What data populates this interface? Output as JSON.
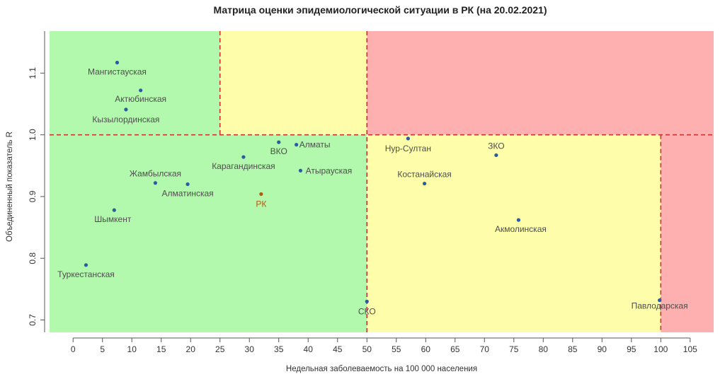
{
  "chart_data": {
    "type": "scatter",
    "title": "Матрица оценки эпидемиологической ситуации в РК (на 20.02.2021)",
    "xlabel": "Недельная заболеваемость на 100 000 населения",
    "ylabel": "Объединенный показатель R",
    "xlim": [
      -4,
      109
    ],
    "ylim": [
      0.68,
      1.168
    ],
    "x_ticks": [
      0,
      5,
      10,
      15,
      20,
      25,
      30,
      35,
      40,
      45,
      50,
      55,
      60,
      65,
      70,
      75,
      80,
      85,
      90,
      95,
      100,
      105
    ],
    "y_ticks": [
      0.7,
      0.8,
      0.9,
      1.0,
      1.1
    ],
    "y_tick_labels": [
      "0.7",
      "0.8",
      "0.9",
      "1.0",
      "1.1"
    ],
    "thresholds": {
      "x": [
        25,
        50,
        100
      ],
      "y": [
        1.0
      ]
    },
    "zone_colors": {
      "green": "#b3f9ad",
      "yellow": "#fefda9",
      "red": "#feb0b0",
      "line": "#cc3333"
    },
    "point_color": "#2d5aa0",
    "label_color": "#4d4d4d",
    "highlight_color": "#b05a10",
    "points": [
      {
        "name": "Мангистауская",
        "x": 7.5,
        "y": 1.117
      },
      {
        "name": "Актюбинская",
        "x": 11.5,
        "y": 1.072
      },
      {
        "name": "Кызылординская",
        "x": 9.0,
        "y": 1.041
      },
      {
        "name": "ВКО",
        "x": 35.0,
        "y": 0.988
      },
      {
        "name": "Алматы",
        "x": 38.0,
        "y": 0.984
      },
      {
        "name": "Карагандинская",
        "x": 29.0,
        "y": 0.964
      },
      {
        "name": "Атырауская",
        "x": 38.7,
        "y": 0.942
      },
      {
        "name": "Жамбылская",
        "x": 14.0,
        "y": 0.922
      },
      {
        "name": "Алматинская",
        "x": 19.5,
        "y": 0.92
      },
      {
        "name": "РК",
        "x": 32.0,
        "y": 0.904,
        "highlight": true
      },
      {
        "name": "Шымкент",
        "x": 7.0,
        "y": 0.878
      },
      {
        "name": "Туркестанская",
        "x": 2.2,
        "y": 0.789
      },
      {
        "name": "СКО",
        "x": 50.0,
        "y": 0.73
      },
      {
        "name": "Нур-Султан",
        "x": 57.0,
        "y": 0.994
      },
      {
        "name": "ЗКО",
        "x": 72.0,
        "y": 0.967
      },
      {
        "name": "Костанайская",
        "x": 59.8,
        "y": 0.921
      },
      {
        "name": "Акмолинская",
        "x": 75.8,
        "y": 0.862
      },
      {
        "name": "Павлодарская",
        "x": 99.8,
        "y": 0.732
      }
    ]
  }
}
